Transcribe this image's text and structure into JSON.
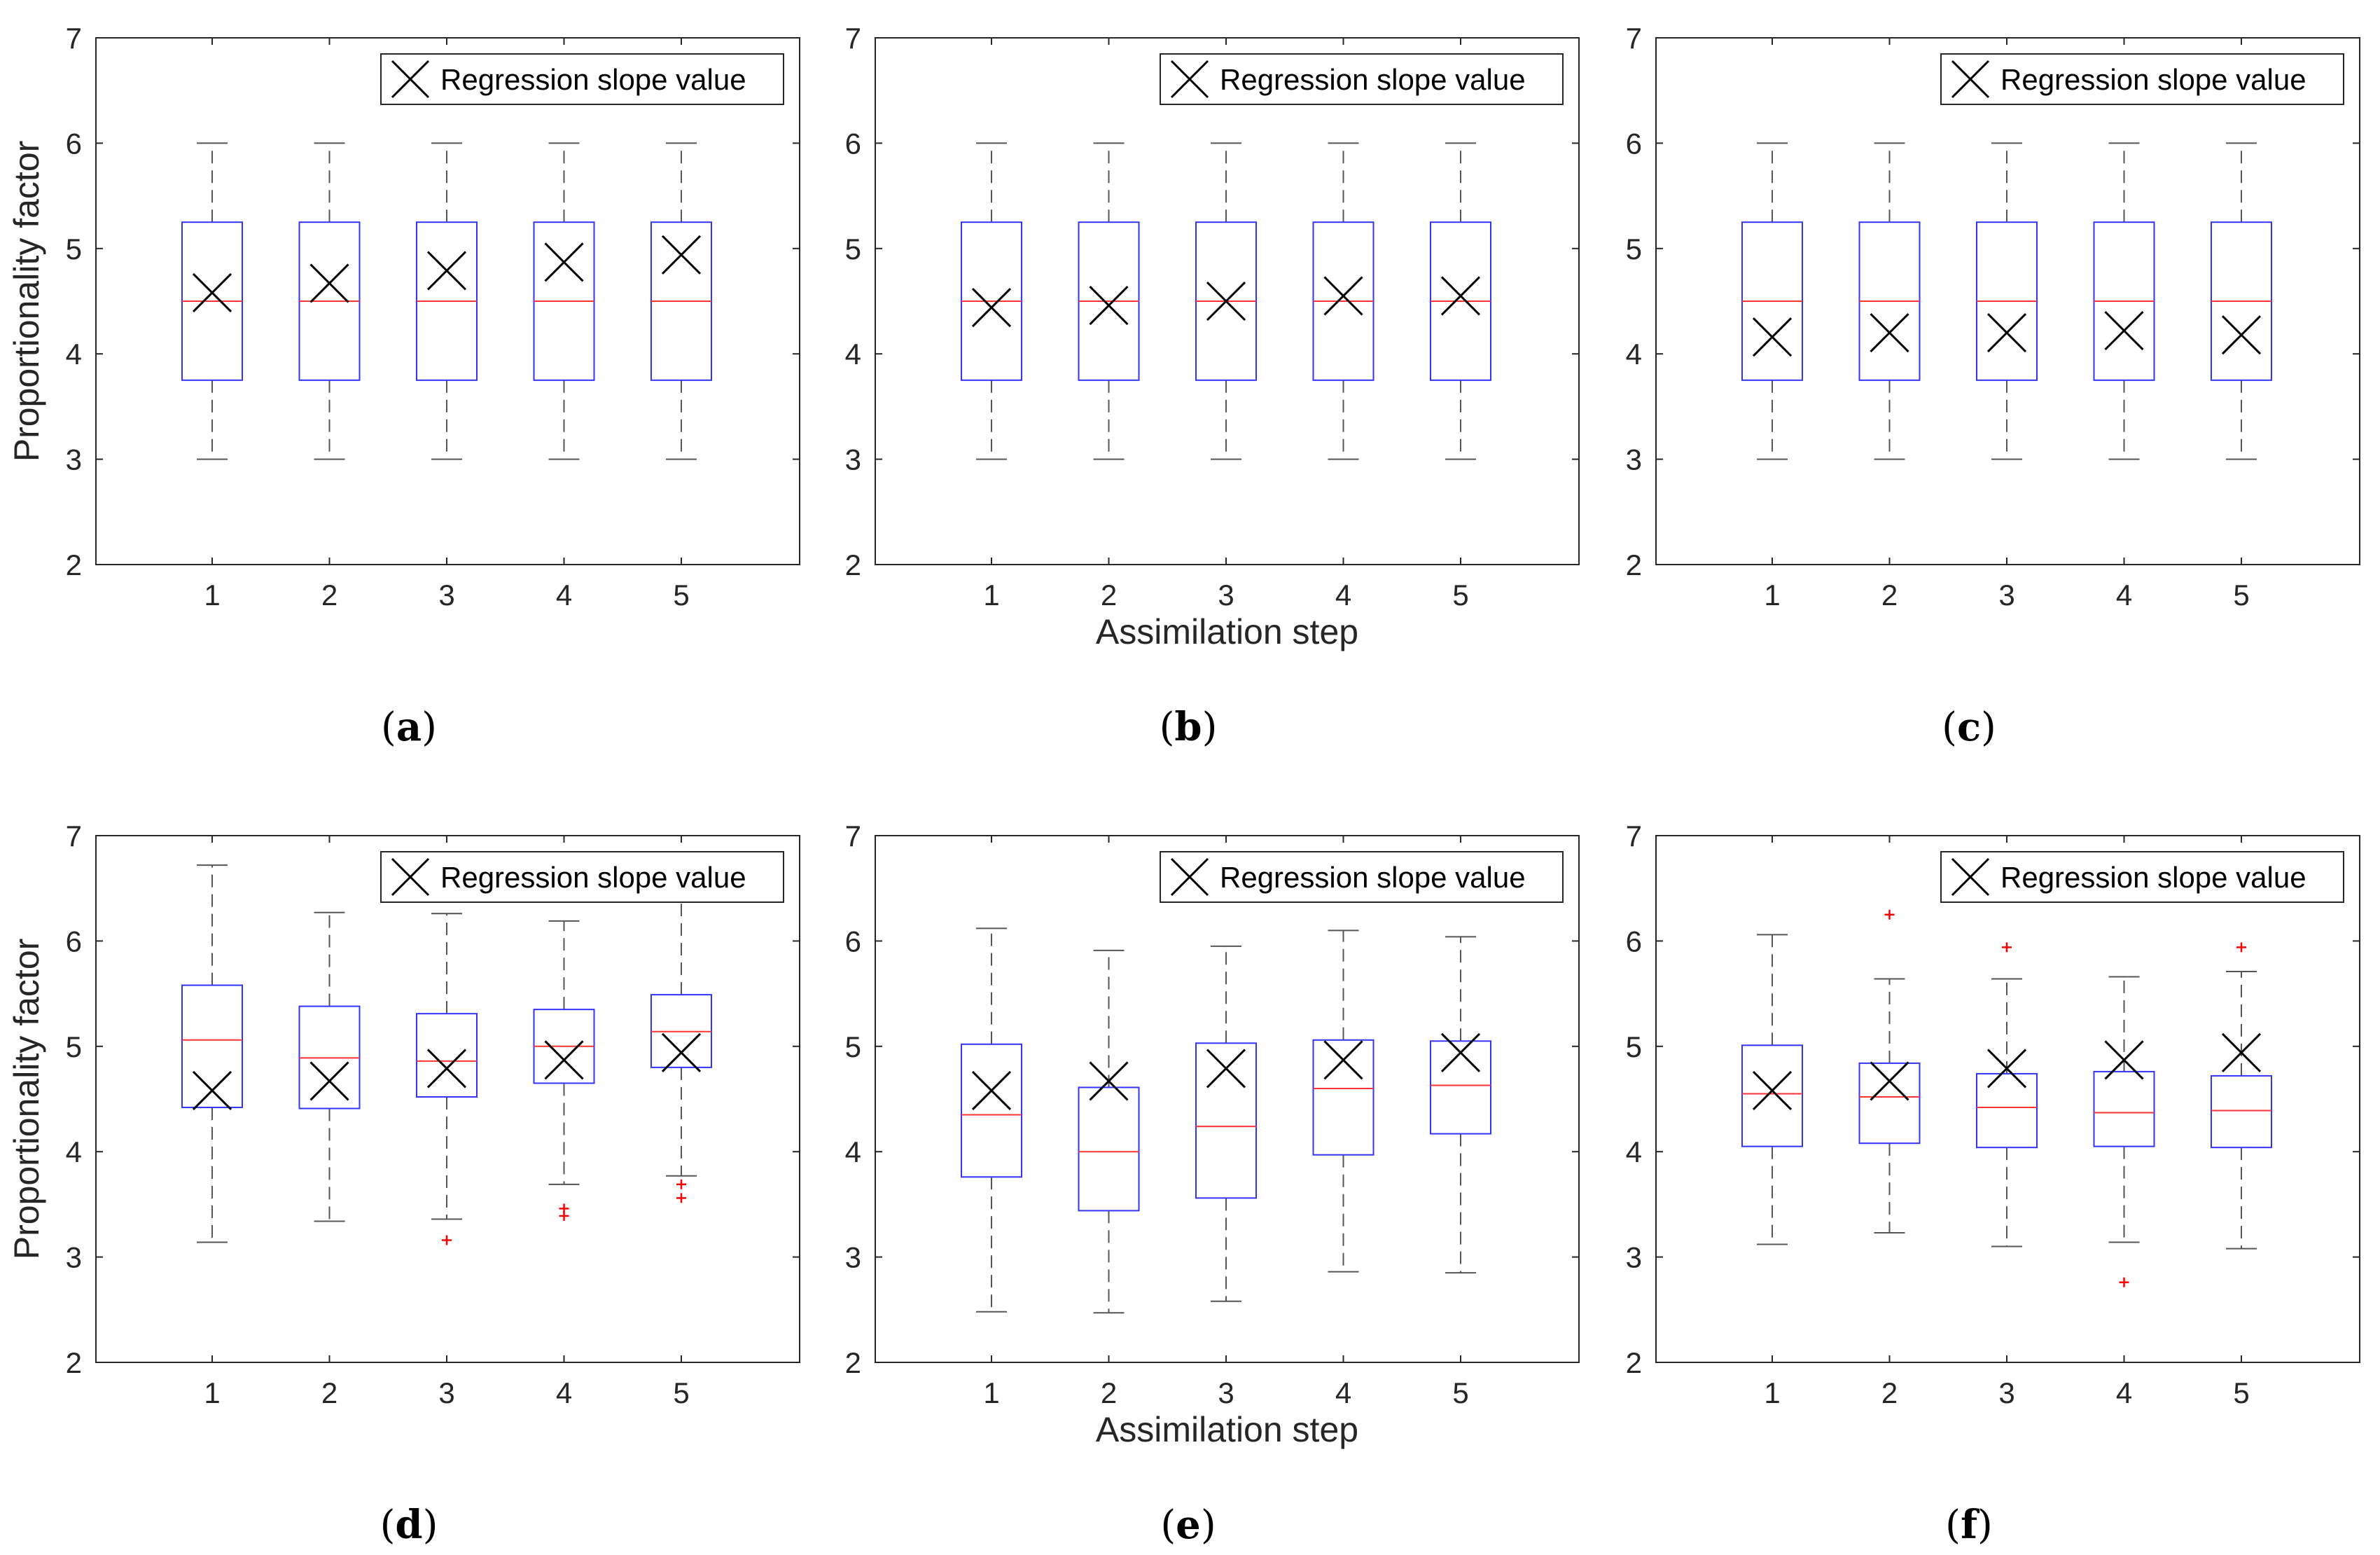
{
  "chart_data": [
    {
      "panel": "(a)",
      "panel_letter": "a",
      "type": "box",
      "xlabel": "",
      "ylabel": "Proportionality factor",
      "ylim": [
        2,
        7
      ],
      "yticks": [
        "2",
        "3",
        "4",
        "5",
        "6",
        "7"
      ],
      "categories": [
        "1",
        "2",
        "3",
        "4",
        "5"
      ],
      "legend": "Regression slope value",
      "boxes": [
        {
          "lw": 3.0,
          "q1": 3.75,
          "med": 4.5,
          "q3": 5.25,
          "uw": 6.0,
          "out": [],
          "slope": 4.58
        },
        {
          "lw": 3.0,
          "q1": 3.75,
          "med": 4.5,
          "q3": 5.25,
          "uw": 6.0,
          "out": [],
          "slope": 4.67
        },
        {
          "lw": 3.0,
          "q1": 3.75,
          "med": 4.5,
          "q3": 5.25,
          "uw": 6.0,
          "out": [],
          "slope": 4.79
        },
        {
          "lw": 3.0,
          "q1": 3.75,
          "med": 4.5,
          "q3": 5.25,
          "uw": 6.0,
          "out": [],
          "slope": 4.87
        },
        {
          "lw": 3.0,
          "q1": 3.75,
          "med": 4.5,
          "q3": 5.25,
          "uw": 6.0,
          "out": [],
          "slope": 4.94
        }
      ]
    },
    {
      "panel": "(b)",
      "panel_letter": "b",
      "type": "box",
      "xlabel": "Assimilation step",
      "ylabel": "",
      "ylim": [
        2,
        7
      ],
      "yticks": [
        "2",
        "3",
        "4",
        "5",
        "6",
        "7"
      ],
      "categories": [
        "1",
        "2",
        "3",
        "4",
        "5"
      ],
      "legend": "Regression slope value",
      "boxes": [
        {
          "lw": 3.0,
          "q1": 3.75,
          "med": 4.5,
          "q3": 5.25,
          "uw": 6.0,
          "out": [],
          "slope": 4.44
        },
        {
          "lw": 3.0,
          "q1": 3.75,
          "med": 4.5,
          "q3": 5.25,
          "uw": 6.0,
          "out": [],
          "slope": 4.46
        },
        {
          "lw": 3.0,
          "q1": 3.75,
          "med": 4.5,
          "q3": 5.25,
          "uw": 6.0,
          "out": [],
          "slope": 4.5
        },
        {
          "lw": 3.0,
          "q1": 3.75,
          "med": 4.5,
          "q3": 5.25,
          "uw": 6.0,
          "out": [],
          "slope": 4.55
        },
        {
          "lw": 3.0,
          "q1": 3.75,
          "med": 4.5,
          "q3": 5.25,
          "uw": 6.0,
          "out": [],
          "slope": 4.55
        }
      ]
    },
    {
      "panel": "(c)",
      "panel_letter": "c",
      "type": "box",
      "xlabel": "",
      "ylabel": "",
      "ylim": [
        2,
        7
      ],
      "yticks": [
        "2",
        "3",
        "4",
        "5",
        "6",
        "7"
      ],
      "categories": [
        "1",
        "2",
        "3",
        "4",
        "5"
      ],
      "legend": "Regression slope value",
      "boxes": [
        {
          "lw": 3.0,
          "q1": 3.75,
          "med": 4.5,
          "q3": 5.25,
          "uw": 6.0,
          "out": [],
          "slope": 4.16
        },
        {
          "lw": 3.0,
          "q1": 3.75,
          "med": 4.5,
          "q3": 5.25,
          "uw": 6.0,
          "out": [],
          "slope": 4.2
        },
        {
          "lw": 3.0,
          "q1": 3.75,
          "med": 4.5,
          "q3": 5.25,
          "uw": 6.0,
          "out": [],
          "slope": 4.2
        },
        {
          "lw": 3.0,
          "q1": 3.75,
          "med": 4.5,
          "q3": 5.25,
          "uw": 6.0,
          "out": [],
          "slope": 4.22
        },
        {
          "lw": 3.0,
          "q1": 3.75,
          "med": 4.5,
          "q3": 5.25,
          "uw": 6.0,
          "out": [],
          "slope": 4.18
        }
      ]
    },
    {
      "panel": "(d)",
      "panel_letter": "d",
      "type": "box",
      "xlabel": "",
      "ylabel": "Proportionality factor",
      "ylim": [
        2,
        7
      ],
      "yticks": [
        "2",
        "3",
        "4",
        "5",
        "6",
        "7"
      ],
      "categories": [
        "1",
        "2",
        "3",
        "4",
        "5"
      ],
      "legend": "Regression slope value",
      "boxes": [
        {
          "lw": 3.14,
          "q1": 4.42,
          "med": 5.06,
          "q3": 5.58,
          "uw": 6.72,
          "out": [],
          "slope": 4.58
        },
        {
          "lw": 3.34,
          "q1": 4.41,
          "med": 4.89,
          "q3": 5.38,
          "uw": 6.27,
          "out": [],
          "slope": 4.67
        },
        {
          "lw": 3.36,
          "q1": 4.52,
          "med": 4.86,
          "q3": 5.31,
          "uw": 6.26,
          "out": [
            3.16
          ],
          "slope": 4.79
        },
        {
          "lw": 3.69,
          "q1": 4.65,
          "med": 5.0,
          "q3": 5.35,
          "uw": 6.19,
          "out": [
            3.39,
            3.46
          ],
          "slope": 4.87
        },
        {
          "lw": 3.77,
          "q1": 4.8,
          "med": 5.14,
          "q3": 5.49,
          "uw": 6.4,
          "out": [
            3.56,
            3.69
          ],
          "slope": 4.94
        }
      ]
    },
    {
      "panel": "(e)",
      "panel_letter": "e",
      "type": "box",
      "xlabel": "Assimilation step",
      "ylabel": "",
      "ylim": [
        2,
        7
      ],
      "yticks": [
        "2",
        "3",
        "4",
        "5",
        "6",
        "7"
      ],
      "categories": [
        "1",
        "2",
        "3",
        "4",
        "5"
      ],
      "legend": "Regression slope value",
      "boxes": [
        {
          "lw": 2.48,
          "q1": 3.76,
          "med": 4.35,
          "q3": 5.02,
          "uw": 6.12,
          "out": [],
          "slope": 4.58
        },
        {
          "lw": 2.47,
          "q1": 3.44,
          "med": 4.0,
          "q3": 4.61,
          "uw": 5.91,
          "out": [],
          "slope": 4.67
        },
        {
          "lw": 2.58,
          "q1": 3.56,
          "med": 4.24,
          "q3": 5.03,
          "uw": 5.95,
          "out": [],
          "slope": 4.79
        },
        {
          "lw": 2.86,
          "q1": 3.97,
          "med": 4.6,
          "q3": 5.06,
          "uw": 6.1,
          "out": [],
          "slope": 4.87
        },
        {
          "lw": 2.85,
          "q1": 4.17,
          "med": 4.63,
          "q3": 5.05,
          "uw": 6.04,
          "out": [],
          "slope": 4.94
        }
      ]
    },
    {
      "panel": "(f)",
      "panel_letter": "f",
      "type": "box",
      "xlabel": "",
      "ylabel": "",
      "ylim": [
        2,
        7
      ],
      "yticks": [
        "2",
        "3",
        "4",
        "5",
        "6",
        "7"
      ],
      "categories": [
        "1",
        "2",
        "3",
        "4",
        "5"
      ],
      "legend": "Regression slope value",
      "boxes": [
        {
          "lw": 3.12,
          "q1": 4.05,
          "med": 4.55,
          "q3": 5.01,
          "uw": 6.06,
          "out": [],
          "slope": 4.58
        },
        {
          "lw": 3.23,
          "q1": 4.08,
          "med": 4.52,
          "q3": 4.84,
          "uw": 5.64,
          "out": [
            6.25
          ],
          "slope": 4.67
        },
        {
          "lw": 3.1,
          "q1": 4.04,
          "med": 4.42,
          "q3": 4.74,
          "uw": 5.64,
          "out": [
            5.94
          ],
          "slope": 4.79
        },
        {
          "lw": 3.14,
          "q1": 4.05,
          "med": 4.37,
          "q3": 4.76,
          "uw": 5.66,
          "out": [
            2.76
          ],
          "slope": 4.87
        },
        {
          "lw": 3.08,
          "q1": 4.04,
          "med": 4.39,
          "q3": 4.72,
          "uw": 5.71,
          "out": [
            5.94
          ],
          "slope": 4.94
        }
      ]
    }
  ],
  "colors": {
    "box": "#3333ff",
    "median": "#ff3333",
    "whisker": "#555555",
    "outlier": "#ff0000",
    "slope_marker": "#000000",
    "axis": "#262626"
  }
}
